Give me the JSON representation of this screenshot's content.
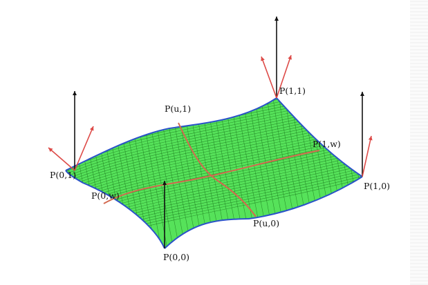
{
  "colors": {
    "surface_fill": "#56e25a",
    "surface_grid": "#1b7a1d",
    "boundary": "#2a52c9",
    "isoparametric_curve": "#d3694f",
    "tangent_vector": "#dd4a47",
    "normal_vector": "#111111"
  },
  "labels": {
    "p00": "P(0,0)",
    "p10": "P(1,0)",
    "p01": "P(0,1)",
    "p11": "P(1,1)",
    "pu0": "P(u,0)",
    "pu1": "P(u,1)",
    "p0w": "P(0,w)",
    "p1w": "P(1,w)"
  },
  "icons": {
    "arrowhead": "triangle-arrowhead"
  }
}
